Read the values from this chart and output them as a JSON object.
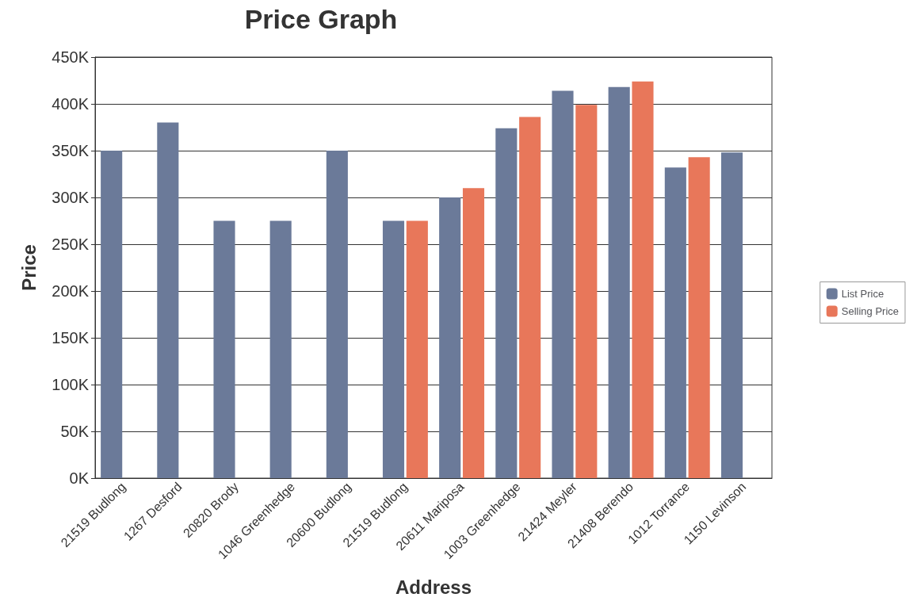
{
  "chart_data": {
    "type": "bar",
    "title": "Price Graph",
    "xlabel": "Address",
    "ylabel": "Price",
    "categories": [
      "21519 Budlong",
      "1267 Desford",
      "20820 Brody",
      "1046 Greenhedge",
      "20600 Budlong",
      "21519 Budlong",
      "20611 Mariposa",
      "1003 Greenhedge",
      "21424 Meyler",
      "21408 Berendo",
      "1012 Torrance",
      "1150 Levinson"
    ],
    "series": [
      {
        "name": "List Price",
        "color": "#6b7a99",
        "values": [
          350000,
          380000,
          275000,
          275000,
          350000,
          275000,
          300000,
          374000,
          414000,
          418000,
          332000,
          348000
        ]
      },
      {
        "name": "Selling Price",
        "color": "#e8775a",
        "values": [
          null,
          null,
          null,
          null,
          null,
          275000,
          310000,
          386000,
          399000,
          424000,
          343000,
          null
        ]
      }
    ],
    "ylim": [
      0,
      450000
    ],
    "yticks": [
      {
        "value": 0,
        "label": "0K"
      },
      {
        "value": 50000,
        "label": "50K"
      },
      {
        "value": 100000,
        "label": "100K"
      },
      {
        "value": 150000,
        "label": "150K"
      },
      {
        "value": 200000,
        "label": "200K"
      },
      {
        "value": 250000,
        "label": "250K"
      },
      {
        "value": 300000,
        "label": "300K"
      },
      {
        "value": 350000,
        "label": "350K"
      },
      {
        "value": 400000,
        "label": "400K"
      },
      {
        "value": 450000,
        "label": "450K"
      }
    ],
    "grid": "y",
    "legend": "right"
  }
}
